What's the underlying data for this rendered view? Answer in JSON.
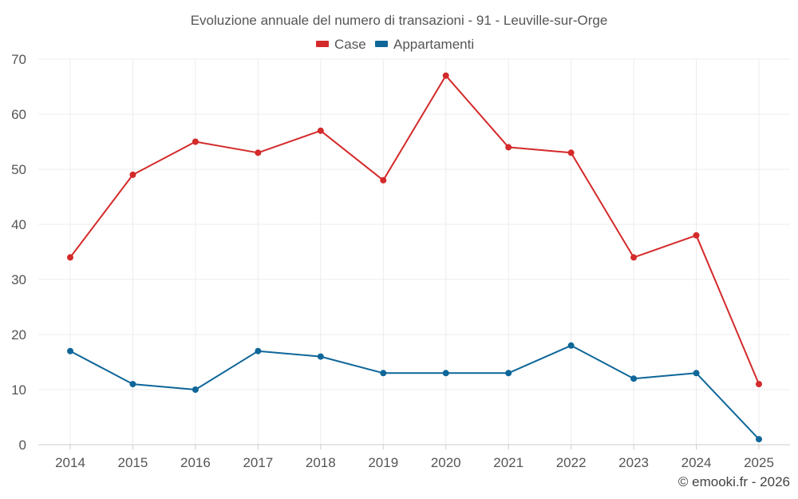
{
  "chart_data": {
    "type": "line",
    "title": "Evoluzione annuale del numero di transazioni - 91 - Leuville-sur-Orge",
    "xlabel": "",
    "ylabel": "",
    "categories": [
      "2014",
      "2015",
      "2016",
      "2017",
      "2018",
      "2019",
      "2020",
      "2021",
      "2022",
      "2023",
      "2024",
      "2025"
    ],
    "ylim": [
      0,
      70
    ],
    "yticks": [
      0,
      10,
      20,
      30,
      40,
      50,
      60,
      70
    ],
    "grid": true,
    "legend_position": "top-center",
    "series": [
      {
        "name": "Case",
        "color": "#d42a2a",
        "values": [
          34,
          49,
          55,
          53,
          57,
          48,
          67,
          54,
          53,
          34,
          38,
          11
        ]
      },
      {
        "name": "Appartamenti",
        "color": "#0e6699",
        "values": [
          17,
          11,
          10,
          17,
          16,
          13,
          13,
          13,
          18,
          12,
          13,
          1
        ]
      }
    ]
  },
  "credit": "© emooki.fr - 2026"
}
